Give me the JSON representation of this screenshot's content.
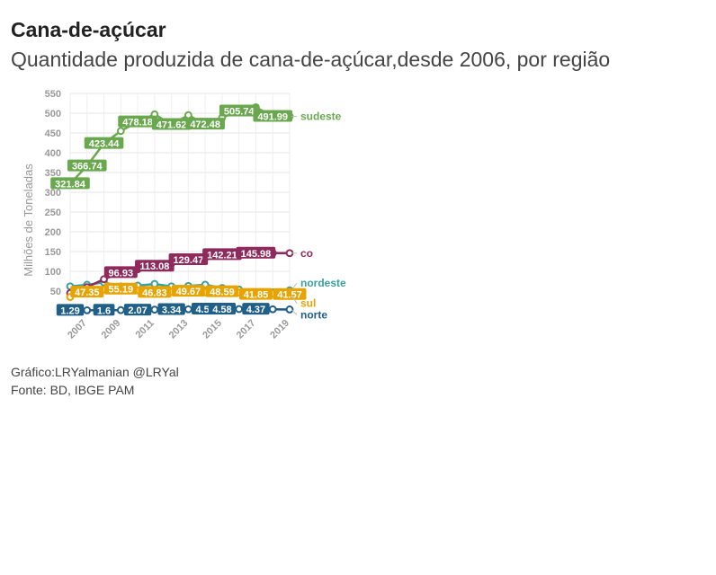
{
  "title": "Cana-de-açúcar",
  "subtitle": "Quantidade produzida de cana-de-açúcar,desde 2006, por região",
  "caption": "Gráfico:LRYalmanian @LRYal",
  "source": "Fonte: BD, IBGE PAM",
  "chart_data": {
    "type": "line",
    "ylabel": "Milhões de Toneladas",
    "xlabel": "",
    "ylim": [
      0,
      550
    ],
    "xlim": [
      2006,
      2019
    ],
    "yticks": [
      50,
      100,
      150,
      200,
      250,
      300,
      350,
      400,
      450,
      500,
      550
    ],
    "xticks": [
      2007,
      2009,
      2011,
      2013,
      2015,
      2017,
      2019
    ],
    "x": [
      2006,
      2007,
      2008,
      2009,
      2010,
      2011,
      2012,
      2013,
      2014,
      2015,
      2016,
      2017,
      2018,
      2019
    ],
    "grid": true,
    "legend": "right end labels",
    "series": [
      {
        "name": "sudeste",
        "color": "#6aa84f",
        "values": [
          321.84,
          366.74,
          423.44,
          455.0,
          478.18,
          497.0,
          471.62,
          495.0,
          472.48,
          489.0,
          505.74,
          515.0,
          491.99,
          492.0
        ],
        "labels": [
          "321.84",
          "366.74",
          "423.44",
          null,
          "478.18",
          null,
          "471.62",
          null,
          "472.48",
          null,
          "505.74",
          null,
          "491.99",
          null
        ]
      },
      {
        "name": "co",
        "color": "#8e2a5c",
        "values": [
          45.0,
          60.0,
          80.0,
          96.93,
          105.0,
          113.08,
          120.0,
          129.47,
          135.0,
          142.21,
          143.0,
          145.98,
          146.0,
          146.0
        ],
        "labels": [
          null,
          null,
          null,
          "96.93",
          null,
          "113.08",
          null,
          "129.47",
          null,
          "142.21",
          null,
          "145.98",
          null,
          null
        ]
      },
      {
        "name": "nordeste",
        "color": "#3a9f9f",
        "values": [
          62.0,
          66.0,
          72.0,
          62.0,
          64.0,
          68.0,
          62.0,
          63.0,
          66.0,
          58.0,
          54.0,
          47.0,
          47.0,
          52.0
        ],
        "labels": [
          null,
          null,
          null,
          null,
          null,
          null,
          null,
          null,
          null,
          null,
          null,
          null,
          null,
          null
        ]
      },
      {
        "name": "sul",
        "color": "#e7a300",
        "values": [
          35.0,
          47.35,
          54.0,
          55.19,
          52.0,
          46.83,
          48.0,
          49.67,
          47.0,
          48.59,
          46.0,
          41.85,
          44.0,
          41.57
        ],
        "labels": [
          null,
          "47.35",
          null,
          "55.19",
          null,
          "46.83",
          null,
          "49.67",
          null,
          "48.59",
          null,
          "41.85",
          null,
          "41.57"
        ]
      },
      {
        "name": "norte",
        "color": "#1f5f88",
        "values": [
          1.29,
          1.5,
          1.6,
          1.8,
          2.07,
          3.0,
          3.34,
          4.0,
          4.56,
          4.58,
          4.5,
          4.37,
          4.0,
          3.5
        ],
        "labels": [
          "1.29",
          null,
          "1.6",
          null,
          "2.07",
          null,
          "3.34",
          null,
          "4.56",
          "4.58",
          null,
          "4.37",
          null,
          null
        ]
      }
    ]
  }
}
